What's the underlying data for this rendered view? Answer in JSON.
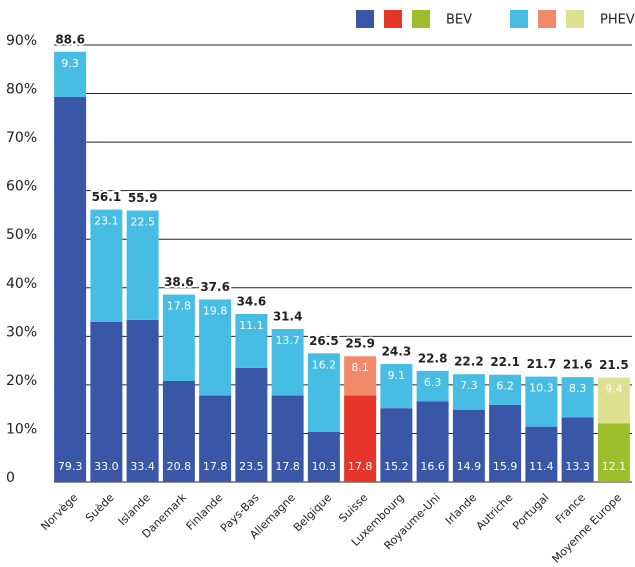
{
  "chart_data": {
    "type": "stacked_bar",
    "categories": [
      "Norvège",
      "Suède",
      "Islande",
      "Danemark",
      "Finlande",
      "Pays-Bas",
      "Allemagne",
      "Belgique",
      "Suisse",
      "Luxembourg",
      "Royaume-Uni",
      "Irlande",
      "Autriche",
      "Portugal",
      "France",
      "Moyenne Europe"
    ],
    "series": [
      {
        "name": "BEV",
        "color": "#3a56a6",
        "colors": [
          "#3a56a6",
          "#3a56a6",
          "#3a56a6",
          "#3a56a6",
          "#3a56a6",
          "#3a56a6",
          "#3a56a6",
          "#3a56a6",
          "#e8352b",
          "#3a56a6",
          "#3a56a6",
          "#3a56a6",
          "#3a56a6",
          "#3a56a6",
          "#3a56a6",
          "#9ebd2a"
        ],
        "legend_colors": [
          "#3a56a6",
          "#e8352b",
          "#9ebd2a"
        ],
        "values": [
          79.3,
          33.0,
          33.4,
          20.8,
          17.8,
          23.5,
          17.8,
          10.3,
          17.8,
          15.2,
          16.6,
          14.9,
          15.9,
          11.4,
          13.3,
          12.1
        ],
        "value_labels": [
          "79.3",
          "33.0",
          "33.4",
          "20.8",
          "17.8",
          "23.5",
          "17.8",
          "10.3",
          "17.8",
          "15.2",
          "16.6",
          "14.9",
          "15.9",
          "11.4",
          "13.3",
          "12.1"
        ]
      },
      {
        "name": "PHEV",
        "color": "#47bde3",
        "colors": [
          "#47bde3",
          "#47bde3",
          "#47bde3",
          "#47bde3",
          "#47bde3",
          "#47bde3",
          "#47bde3",
          "#47bde3",
          "#f08a6a",
          "#47bde3",
          "#47bde3",
          "#47bde3",
          "#47bde3",
          "#47bde3",
          "#47bde3",
          "#dde08f"
        ],
        "legend_colors": [
          "#47bde3",
          "#f08a6a",
          "#dde08f"
        ],
        "values": [
          9.3,
          23.1,
          22.5,
          17.8,
          19.8,
          11.1,
          13.7,
          16.2,
          8.1,
          9.1,
          6.3,
          7.3,
          6.2,
          10.3,
          8.3,
          9.4
        ],
        "value_labels": [
          "9.3",
          "23.1",
          "22.5",
          "17.8",
          "19.8",
          "11.1",
          "13.7",
          "16.2",
          "8.1",
          "9.1",
          "6.3",
          "7.3",
          "6.2",
          "10.3",
          "8.3",
          "9.4"
        ]
      }
    ],
    "totals": [
      88.6,
      56.1,
      55.9,
      38.6,
      37.6,
      34.6,
      31.4,
      26.5,
      25.9,
      24.3,
      22.8,
      22.2,
      22.1,
      21.7,
      21.6,
      21.5
    ],
    "ylim": [
      0,
      90
    ],
    "yticks": [
      0,
      {
        "value": 10,
        "label": "10%"
      },
      {
        "value": 20,
        "label": "20%"
      },
      {
        "value": 30,
        "label": "30%"
      },
      {
        "value": 40,
        "label": "40%"
      },
      {
        "value": 50,
        "label": "50%"
      },
      {
        "value": 60,
        "label": "60%"
      },
      {
        "value": 70,
        "label": "70%"
      },
      {
        "value": 80,
        "label": "80%"
      },
      {
        "value": 90,
        "label": "90%"
      }
    ],
    "grid": true
  }
}
